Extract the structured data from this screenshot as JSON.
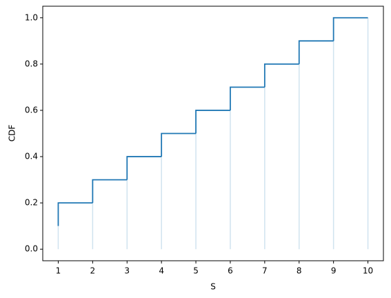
{
  "chart_data": {
    "type": "step",
    "step_where": "pre",
    "x_label": "S",
    "y_label": "CDF",
    "x": [
      1,
      2,
      3,
      4,
      5,
      6,
      7,
      8,
      9,
      10
    ],
    "values": [
      0.1,
      0.2,
      0.3,
      0.4,
      0.5,
      0.6,
      0.7,
      0.8,
      0.9,
      1.0
    ],
    "color": "#1f77b4",
    "vlines": true,
    "vline_color": "#d0e3ef",
    "xlim": [
      0.55,
      10.45
    ],
    "ylim": [
      -0.05,
      1.05
    ],
    "xticks": [
      1,
      2,
      3,
      4,
      5,
      6,
      7,
      8,
      9,
      10
    ],
    "yticks": [
      {
        "value": 0,
        "label": "0.0"
      },
      {
        "value": 0.2,
        "label": "0.2"
      },
      {
        "value": 0.4,
        "label": "0.4"
      },
      {
        "value": 0.6,
        "label": "0.6"
      },
      {
        "value": 0.8,
        "label": "0.8"
      },
      {
        "value": 1,
        "label": "1.0"
      }
    ],
    "grid": false
  }
}
